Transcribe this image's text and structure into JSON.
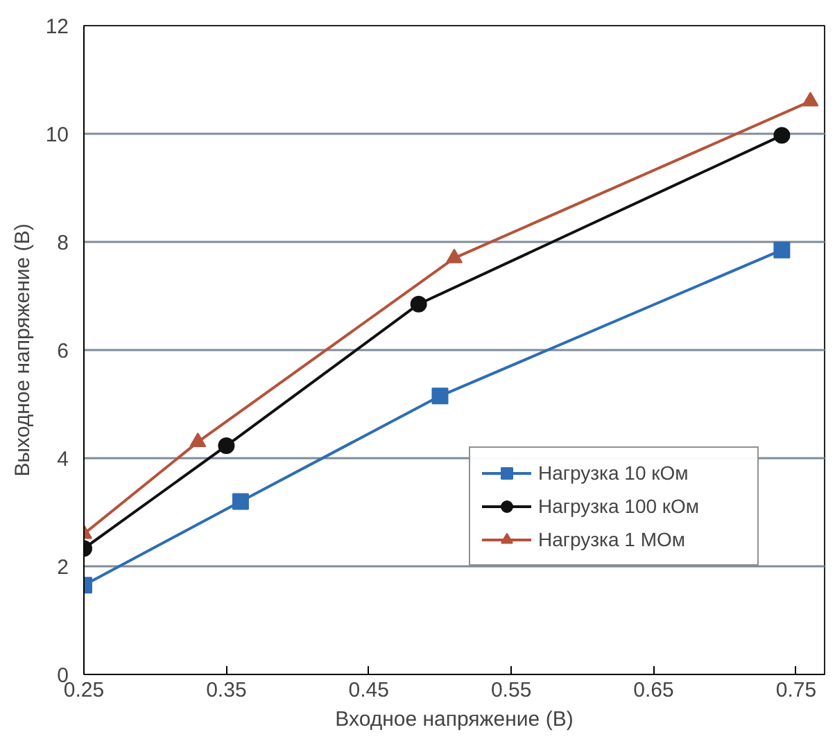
{
  "chart_data": {
    "type": "line",
    "xlabel": "Входное напряжение (В)",
    "ylabel": "Выходное напряжение (В)",
    "xlim": [
      0.25,
      0.77
    ],
    "xticks": [
      0.25,
      0.35,
      0.45,
      0.55,
      0.65,
      0.75
    ],
    "ylim": [
      0,
      12
    ],
    "yticks": [
      0,
      2,
      4,
      6,
      8,
      10,
      12
    ],
    "grid": "y",
    "legend": "right",
    "series": [
      {
        "name": "Нагрузка 10 кОм",
        "color": "#2e6db4",
        "marker": "square",
        "x": [
          0.25,
          0.36,
          0.5,
          0.74
        ],
        "values": [
          1.65,
          3.2,
          5.15,
          7.85
        ]
      },
      {
        "name": "Нагрузка 100 кОм",
        "color": "#111111",
        "marker": "circle",
        "x": [
          0.25,
          0.35,
          0.485,
          0.74
        ],
        "values": [
          2.33,
          4.23,
          6.85,
          9.97
        ]
      },
      {
        "name": "Нагрузка 1 МОм",
        "color": "#b5523b",
        "marker": "triangle",
        "x": [
          0.25,
          0.33,
          0.51,
          0.76
        ],
        "values": [
          2.6,
          4.3,
          7.7,
          10.6
        ]
      }
    ]
  }
}
